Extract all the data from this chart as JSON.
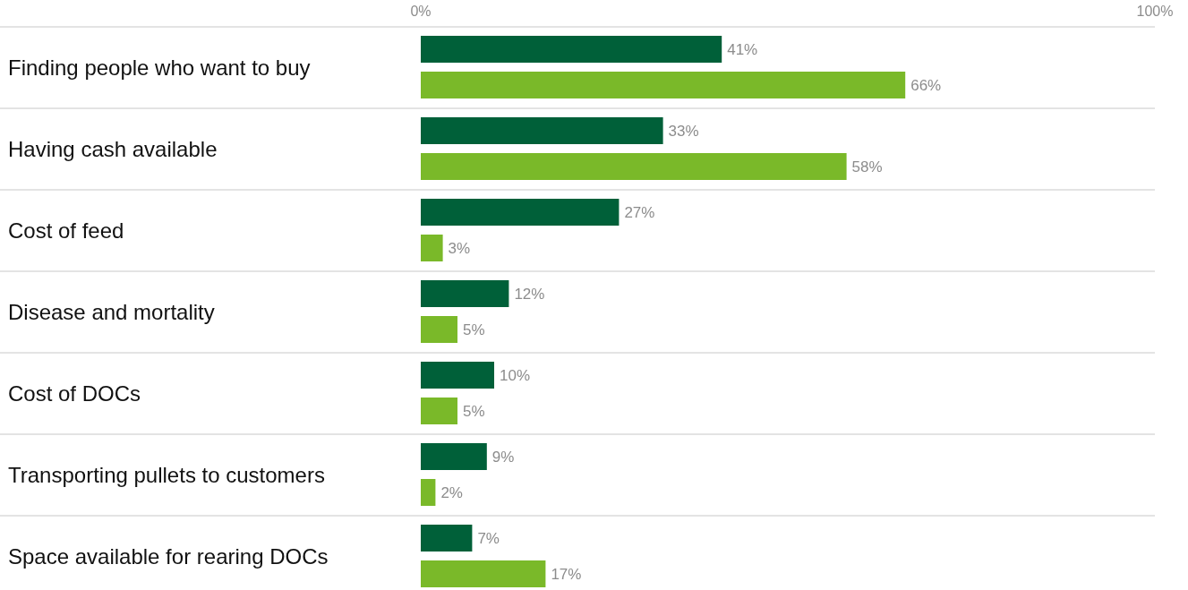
{
  "chart_data": {
    "type": "bar",
    "orientation": "horizontal",
    "categories": [
      "Finding people who want to buy",
      "Having cash available",
      "Cost of feed",
      "Disease and mortality",
      "Cost of DOCs",
      "Transporting pullets to customers",
      "Space available for rearing DOCs"
    ],
    "series": [
      {
        "color": "#006039",
        "values": [
          41,
          33,
          27,
          12,
          10,
          9,
          7
        ],
        "value_labels": [
          "41%",
          "33%",
          "27%",
          "12%",
          "10%",
          "9%",
          "7%"
        ]
      },
      {
        "color": "#7ab929",
        "values": [
          66,
          58,
          3,
          5,
          5,
          2,
          17
        ],
        "value_labels": [
          "66%",
          "58%",
          "3%",
          "5%",
          "5%",
          "2%",
          "17%"
        ]
      }
    ],
    "xlim": [
      0,
      100
    ],
    "xticks": [
      {
        "value": 0,
        "label": "0%"
      },
      {
        "value": 100,
        "label": "100%"
      }
    ],
    "grid": "y"
  }
}
